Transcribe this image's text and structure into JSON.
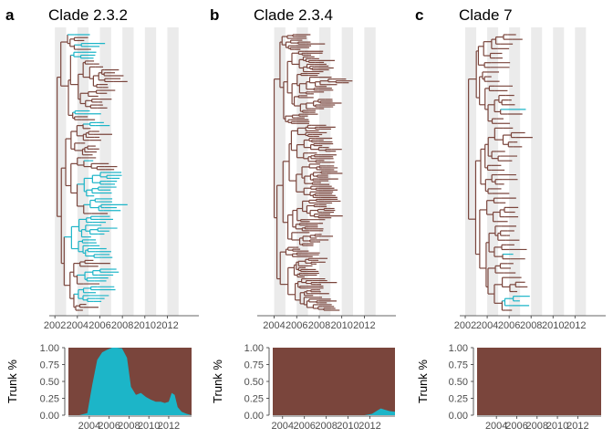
{
  "colors": {
    "trunk": "#1cb5c8",
    "side": "#7a453c",
    "band": "#ebebeb",
    "axis": "#333333"
  },
  "chart_data": [
    {
      "letter": "a",
      "title": "Clade 2.3.2",
      "type": "tree+area",
      "tree": {
        "xlim": [
          2001.5,
          2014.8
        ],
        "year_ticks": [
          2002,
          2004,
          2006,
          2008,
          2010,
          2012
        ],
        "bands": [
          [
            2002,
            2003
          ],
          [
            2004,
            2005
          ],
          [
            2006,
            2007
          ],
          [
            2008,
            2009
          ],
          [
            2010,
            2011
          ],
          [
            2012,
            2013
          ]
        ],
        "root": 2002.2,
        "trunk_path": [
          2002.2,
          2003.2,
          2004.1,
          2005.0,
          2006.0,
          2006.6,
          2007.2,
          2007.8,
          2008.5
        ]
      },
      "area": {
        "ylabel": "Trunk %",
        "yticks": [
          "0.00",
          "0.25",
          "0.50",
          "0.75",
          "1.00"
        ],
        "xticks": [
          "2004",
          "2006",
          "2008",
          "2010",
          "2012"
        ],
        "x": [
          2002.0,
          2003.0,
          2003.8,
          2004.3,
          2004.8,
          2005.3,
          2005.8,
          2006.3,
          2006.8,
          2007.3,
          2007.8,
          2008.2,
          2008.7,
          2009.2,
          2009.7,
          2010.2,
          2010.7,
          2011.2,
          2011.6,
          2012.0,
          2012.3,
          2012.6,
          2012.9,
          2013.3,
          2013.8,
          2014.3
        ],
        "trunk": [
          0.0,
          0.0,
          0.03,
          0.45,
          0.82,
          0.93,
          0.97,
          1.0,
          1.0,
          0.99,
          0.85,
          0.42,
          0.3,
          0.33,
          0.27,
          0.23,
          0.2,
          0.2,
          0.18,
          0.2,
          0.33,
          0.3,
          0.12,
          0.05,
          0.02,
          0.0
        ]
      }
    },
    {
      "letter": "b",
      "title": "Clade 2.3.4",
      "type": "tree+area",
      "tree": {
        "xlim": [
          2002.5,
          2014.8
        ],
        "year_ticks": [
          2004,
          2006,
          2008,
          2010,
          2012
        ],
        "bands": [
          [
            2004,
            2005
          ],
          [
            2006,
            2007
          ],
          [
            2008,
            2009
          ],
          [
            2010,
            2011
          ],
          [
            2012,
            2013
          ]
        ],
        "root": 2004.0,
        "trunk_path": [
          2012.7,
          2013.3,
          2013.8,
          2014.3
        ]
      },
      "area": {
        "ylabel": "Trunk %",
        "yticks": [
          "0.00",
          "0.25",
          "0.50",
          "0.75",
          "1.00"
        ],
        "xticks": [
          "2004",
          "2006",
          "2008",
          "2010",
          "2012"
        ],
        "x": [
          2003.5,
          2004.5,
          2006.0,
          2008.0,
          2010.0,
          2011.5,
          2012.2,
          2012.6,
          2013.0,
          2013.4,
          2013.8,
          2014.3
        ],
        "trunk": [
          0.0,
          0.0,
          0.0,
          0.0,
          0.0,
          0.0,
          0.02,
          0.06,
          0.1,
          0.08,
          0.06,
          0.05
        ]
      }
    },
    {
      "letter": "c",
      "title": "Clade 7",
      "type": "tree+area",
      "tree": {
        "xlim": [
          2001.5,
          2014.8
        ],
        "year_ticks": [
          2002,
          2004,
          2006,
          2008,
          2010,
          2012
        ],
        "bands": [
          [
            2002,
            2003
          ],
          [
            2004,
            2005
          ],
          [
            2006,
            2007
          ],
          [
            2008,
            2009
          ],
          [
            2010,
            2011
          ],
          [
            2012,
            2013
          ]
        ],
        "root": 2002.3,
        "trunk_path": [
          2005.6,
          2006.2,
          2008.6,
          2009.3
        ]
      },
      "area": {
        "ylabel": "Trunk %",
        "yticks": [
          "0.00",
          "0.25",
          "0.50",
          "0.75",
          "1.00"
        ],
        "xticks": [
          "2004",
          "2006",
          "2008",
          "2010",
          "2012"
        ],
        "x": [
          2002.0,
          2004.0,
          2006.0,
          2008.0,
          2010.0,
          2012.0,
          2014.3
        ],
        "trunk": [
          0.0,
          0.0,
          0.0,
          0.0,
          0.0,
          0.0,
          0.0
        ]
      }
    }
  ]
}
